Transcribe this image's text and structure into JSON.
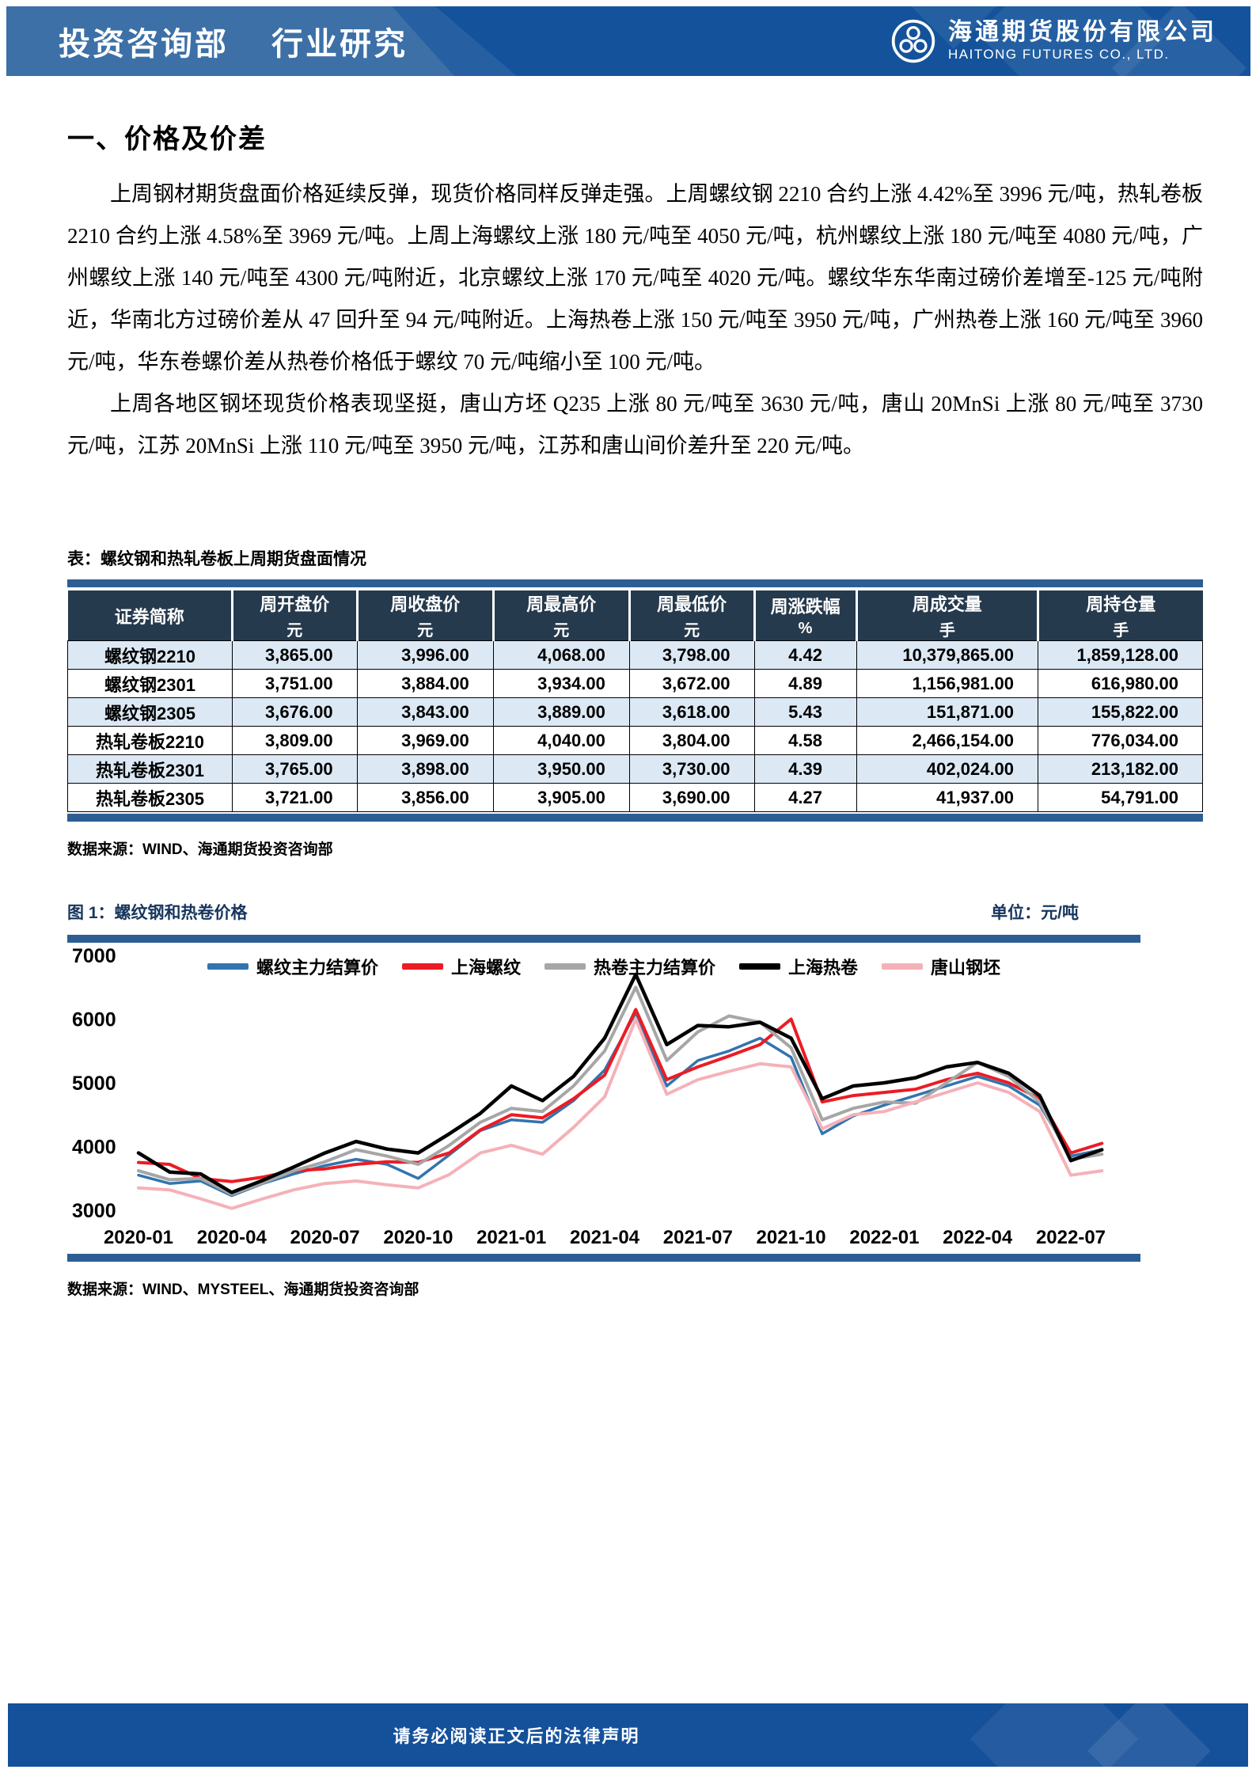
{
  "header": {
    "department": "投资咨询部",
    "doc_type": "行业研究",
    "company_cn": "海通期货股份有限公司",
    "company_en": "HAITONG FUTURES CO., LTD."
  },
  "section": {
    "title": "一、价格及价差",
    "paragraphs": [
      "上周钢材期货盘面价格延续反弹，现货价格同样反弹走强。上周螺纹钢 2210 合约上涨 4.42%至 3996 元/吨，热轧卷板 2210 合约上涨 4.58%至 3969 元/吨。上周上海螺纹上涨 180 元/吨至 4050 元/吨，杭州螺纹上涨 180 元/吨至 4080 元/吨，广州螺纹上涨 140 元/吨至 4300 元/吨附近，北京螺纹上涨 170 元/吨至 4020 元/吨。螺纹华东华南过磅价差增至-125 元/吨附近，华南北方过磅价差从 47 回升至 94 元/吨附近。上海热卷上涨 150 元/吨至 3950 元/吨，广州热卷上涨 160 元/吨至 3960 元/吨，华东卷螺价差从热卷价格低于螺纹 70 元/吨缩小至 100 元/吨。",
      "上周各地区钢坯现货价格表现坚挺，唐山方坯 Q235 上涨 80 元/吨至 3630 元/吨，唐山 20MnSi 上涨 80 元/吨至 3730 元/吨，江苏 20MnSi 上涨 110 元/吨至 3950 元/吨，江苏和唐山间价差升至 220 元/吨。"
    ]
  },
  "table": {
    "caption": "表：螺纹钢和热轧卷板上周期货盘面情况",
    "columns": [
      {
        "label": "证券简称",
        "unit": "",
        "width": "14.5%",
        "align": "center"
      },
      {
        "label": "周开盘价",
        "unit": "元",
        "width": "11%",
        "align": "right"
      },
      {
        "label": "周收盘价",
        "unit": "元",
        "width": "12%",
        "align": "right"
      },
      {
        "label": "周最高价",
        "unit": "元",
        "width": "12%",
        "align": "right"
      },
      {
        "label": "周最低价",
        "unit": "元",
        "width": "11%",
        "align": "right"
      },
      {
        "label": "周涨跌幅",
        "unit": "%",
        "width": "9%",
        "align": "center"
      },
      {
        "label": "周成交量",
        "unit": "手",
        "width": "16%",
        "align": "right"
      },
      {
        "label": "周持仓量",
        "unit": "手",
        "width": "14.5%",
        "align": "right"
      }
    ],
    "rows": [
      [
        "螺纹钢2210",
        "3,865.00",
        "3,996.00",
        "4,068.00",
        "3,798.00",
        "4.42",
        "10,379,865.00",
        "1,859,128.00"
      ],
      [
        "螺纹钢2301",
        "3,751.00",
        "3,884.00",
        "3,934.00",
        "3,672.00",
        "4.89",
        "1,156,981.00",
        "616,980.00"
      ],
      [
        "螺纹钢2305",
        "3,676.00",
        "3,843.00",
        "3,889.00",
        "3,618.00",
        "5.43",
        "151,871.00",
        "155,822.00"
      ],
      [
        "热轧卷板2210",
        "3,809.00",
        "3,969.00",
        "4,040.00",
        "3,804.00",
        "4.58",
        "2,466,154.00",
        "776,034.00"
      ],
      [
        "热轧卷板2301",
        "3,765.00",
        "3,898.00",
        "3,950.00",
        "3,730.00",
        "4.39",
        "402,024.00",
        "213,182.00"
      ],
      [
        "热轧卷板2305",
        "3,721.00",
        "3,856.00",
        "3,905.00",
        "3,690.00",
        "4.27",
        "41,937.00",
        "54,791.00"
      ]
    ],
    "source": "数据来源：WIND、海通期货投资咨询部"
  },
  "figure": {
    "caption": "图 1：螺纹钢和热卷价格",
    "unit_label": "单位：元/吨",
    "source": "数据来源：WIND、MYSTEEL、海通期货投资咨询部"
  },
  "chart_data": {
    "type": "line",
    "title": "螺纹钢和热卷价格",
    "ylabel": "元/吨",
    "ylim": [
      3000,
      7000
    ],
    "yticks": [
      7000,
      6000,
      5000,
      4000,
      3000
    ],
    "grid": false,
    "legend_position": "top",
    "x_start": "2020-01",
    "x_end": "2022-08",
    "x_interval": "monthly",
    "xtick_labels": [
      "2020-01",
      "2020-04",
      "2020-07",
      "2020-10",
      "2021-01",
      "2021-04",
      "2021-07",
      "2021-10",
      "2022-01",
      "2022-04",
      "2022-07"
    ],
    "xtick_indices": [
      0,
      3,
      6,
      9,
      12,
      15,
      18,
      21,
      24,
      27,
      30
    ],
    "series": [
      {
        "name": "螺纹主力结算价",
        "color": "#3274AE",
        "stroke_width": 3.5,
        "values": [
          3550,
          3420,
          3460,
          3230,
          3420,
          3570,
          3700,
          3800,
          3720,
          3500,
          3870,
          4250,
          4420,
          4380,
          4720,
          5200,
          6100,
          4950,
          5350,
          5500,
          5700,
          5400,
          4200,
          4480,
          4650,
          4800,
          4950,
          5100,
          4950,
          4650,
          3850,
          3950
        ]
      },
      {
        "name": "上海螺纹",
        "color": "#EC1C24",
        "stroke_width": 4,
        "values": [
          3750,
          3720,
          3500,
          3450,
          3520,
          3620,
          3650,
          3720,
          3760,
          3750,
          3900,
          4260,
          4500,
          4450,
          4750,
          5120,
          6150,
          5050,
          5250,
          5420,
          5600,
          6000,
          4700,
          4800,
          4850,
          4900,
          5050,
          5150,
          5000,
          4750,
          3900,
          4050
        ]
      },
      {
        "name": "热卷主力结算价",
        "color": "#A6A6A6",
        "stroke_width": 4,
        "values": [
          3620,
          3480,
          3500,
          3250,
          3430,
          3620,
          3760,
          3950,
          3850,
          3720,
          4020,
          4380,
          4600,
          4550,
          4950,
          5500,
          6500,
          5350,
          5800,
          6050,
          5950,
          5550,
          4420,
          4600,
          4700,
          4680,
          5000,
          5320,
          5100,
          4700,
          3800,
          3880
        ]
      },
      {
        "name": "上海热卷",
        "color": "#000000",
        "stroke_width": 4.5,
        "values": [
          3900,
          3600,
          3570,
          3280,
          3470,
          3680,
          3900,
          4080,
          3960,
          3900,
          4200,
          4520,
          4950,
          4720,
          5100,
          5700,
          6700,
          5600,
          5900,
          5880,
          5950,
          5700,
          4750,
          4950,
          5000,
          5080,
          5250,
          5320,
          5150,
          4800,
          3780,
          3950
        ]
      },
      {
        "name": "唐山钢坯",
        "color": "#F5B1B8",
        "stroke_width": 4,
        "values": [
          3350,
          3320,
          3180,
          3030,
          3180,
          3320,
          3420,
          3460,
          3400,
          3350,
          3560,
          3900,
          4020,
          3880,
          4300,
          4780,
          6000,
          4820,
          5050,
          5180,
          5300,
          5250,
          4280,
          4500,
          4550,
          4700,
          4850,
          5000,
          4850,
          4550,
          3550,
          3620
        ]
      }
    ]
  },
  "footer": {
    "disclaimer": "请务必阅读正文后的法律声明"
  },
  "colors": {
    "accent_bar": "#2D5E93",
    "table_header_bg": "#263A4D",
    "table_row_alt": "#DCE9F5",
    "banner_dark": "#14539B",
    "banner_light": "#3C70A7",
    "footer_bg": "#15509A"
  }
}
